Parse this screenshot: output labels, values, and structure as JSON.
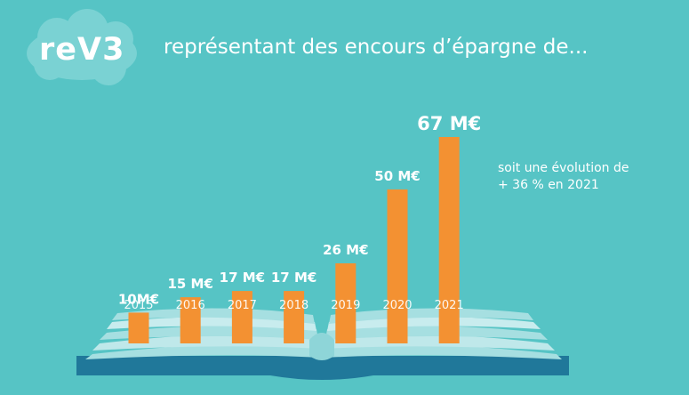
{
  "brand": {
    "logo_text": "reV3"
  },
  "headline": "représentant des encours d’épargne de...",
  "note": {
    "line1": "soit une évolution de",
    "line2": "+ 36 % en 2021"
  },
  "colors": {
    "background": "#56c4c5",
    "bar": "#f39132",
    "book_pages": "#a6dfe1",
    "book_cover": "#20789a"
  },
  "chart_data": {
    "type": "bar",
    "categories": [
      "2015",
      "2016",
      "2017",
      "2018",
      "2019",
      "2020",
      "2021"
    ],
    "values": [
      10,
      15,
      17,
      17,
      26,
      50,
      67
    ],
    "data_labels": [
      "10M€",
      "15 M€",
      "17 M€",
      "17 M€",
      "26 M€",
      "50 M€",
      "67 M€"
    ],
    "title": "",
    "xlabel": "",
    "ylabel": "",
    "ylim": [
      0,
      67
    ],
    "grid": false
  }
}
